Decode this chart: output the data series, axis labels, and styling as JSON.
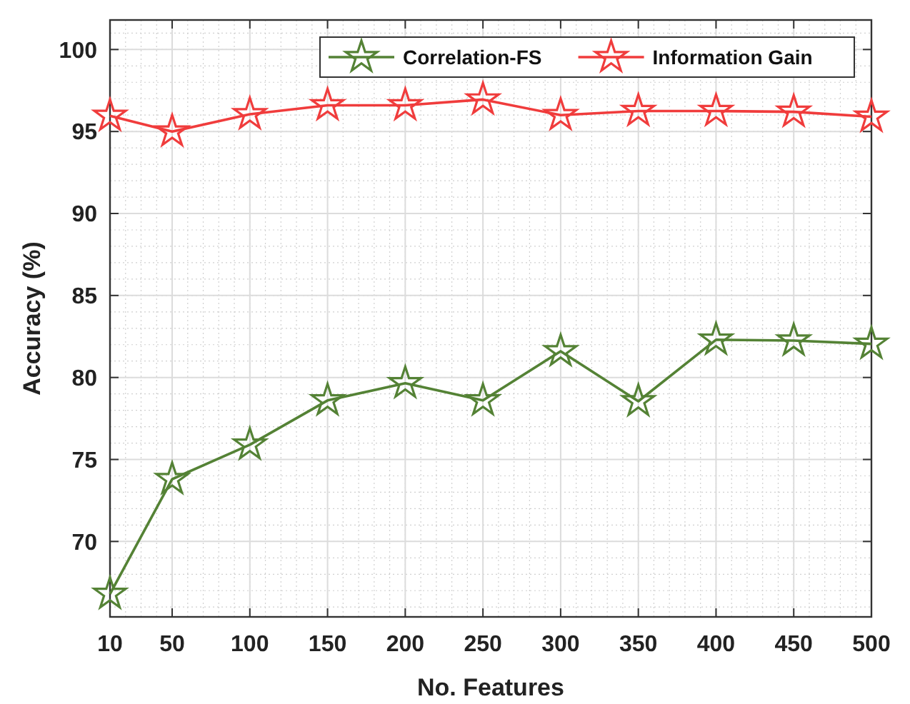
{
  "chart_data": {
    "type": "line",
    "xlabel": "No. Features",
    "ylabel": "Accuracy (%)",
    "x": [
      10,
      50,
      100,
      150,
      200,
      250,
      300,
      350,
      400,
      450,
      500
    ],
    "series": [
      {
        "name": "Correlation-FS",
        "color": "#548235",
        "values": [
          66.8,
          73.8,
          75.9,
          78.6,
          79.65,
          78.6,
          81.6,
          78.55,
          82.3,
          82.25,
          82.05
        ]
      },
      {
        "name": "Information Gain",
        "color": "#f03c3c",
        "values": [
          95.95,
          95.0,
          96.05,
          96.6,
          96.6,
          96.95,
          96.0,
          96.25,
          96.25,
          96.2,
          95.9
        ]
      }
    ],
    "xlim": [
      10,
      500
    ],
    "xticks": [
      10,
      50,
      100,
      150,
      200,
      250,
      300,
      350,
      400,
      450,
      500
    ],
    "ylim": [
      65.4,
      101.8
    ],
    "yticks": [
      70,
      75,
      80,
      85,
      90,
      95,
      100
    ],
    "grid": true,
    "legend": "top right",
    "marker": "star",
    "line_style": "solid"
  }
}
